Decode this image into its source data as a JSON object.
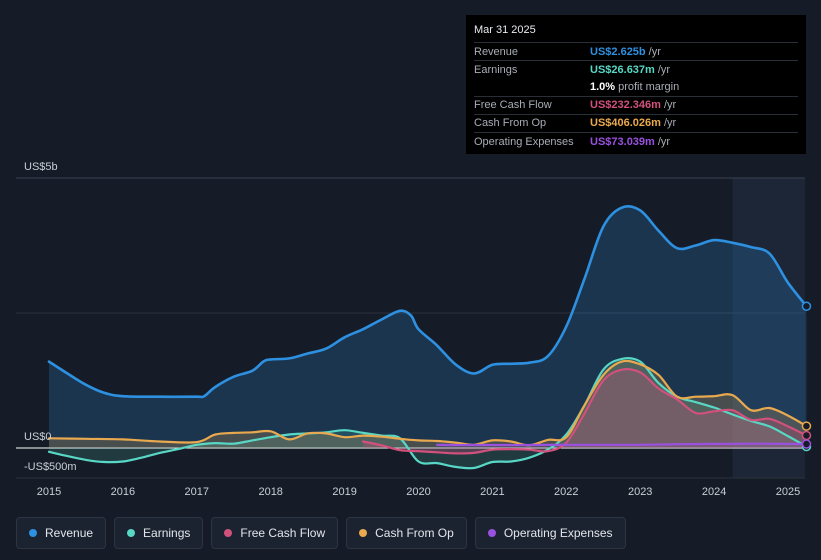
{
  "tooltip": {
    "date": "Mar 31 2025",
    "rows": [
      {
        "label": "Revenue",
        "value": "US$2.625b",
        "unit": "/yr",
        "color": "#2e90e0"
      },
      {
        "label": "Earnings",
        "value": "US$26.637m",
        "unit": "/yr",
        "color": "#58d7c5"
      },
      {
        "label": "",
        "value": "1.0%",
        "unit": "profit margin",
        "color": "#ffffff"
      },
      {
        "label": "Free Cash Flow",
        "value": "US$232.346m",
        "unit": "/yr",
        "color": "#d2517c"
      },
      {
        "label": "Cash From Op",
        "value": "US$406.026m",
        "unit": "/yr",
        "color": "#e9a94f"
      },
      {
        "label": "Operating Expenses",
        "value": "US$73.039m",
        "unit": "/yr",
        "color": "#9b51e0"
      }
    ]
  },
  "legend": [
    {
      "label": "Revenue",
      "color": "#2e90e0"
    },
    {
      "label": "Earnings",
      "color": "#58d7c5"
    },
    {
      "label": "Free Cash Flow",
      "color": "#d2517c"
    },
    {
      "label": "Cash From Op",
      "color": "#e9a94f"
    },
    {
      "label": "Operating Expenses",
      "color": "#9b51e0"
    }
  ],
  "chart_data": {
    "type": "area",
    "title": "",
    "xlabel": "",
    "ylabel": "",
    "ylim": [
      -500,
      5000
    ],
    "y_tick_labels": [
      "US$5b",
      "US$0",
      "-US$500m"
    ],
    "x_tick_labels": [
      "2015",
      "2016",
      "2017",
      "2018",
      "2019",
      "2020",
      "2021",
      "2022",
      "2023",
      "2024",
      "2025"
    ],
    "highlight_start": 2024.25,
    "series": [
      {
        "name": "Revenue",
        "color": "#2e90e0",
        "unit": "US$m",
        "points": [
          [
            2015.0,
            1600
          ],
          [
            2015.25,
            1380
          ],
          [
            2015.5,
            1170
          ],
          [
            2015.75,
            1020
          ],
          [
            2016.0,
            960
          ],
          [
            2016.5,
            950
          ],
          [
            2017.0,
            950
          ],
          [
            2017.1,
            960
          ],
          [
            2017.25,
            1130
          ],
          [
            2017.5,
            1320
          ],
          [
            2017.75,
            1430
          ],
          [
            2017.9,
            1600
          ],
          [
            2018.0,
            1640
          ],
          [
            2018.25,
            1660
          ],
          [
            2018.5,
            1750
          ],
          [
            2018.75,
            1840
          ],
          [
            2019.0,
            2050
          ],
          [
            2019.25,
            2200
          ],
          [
            2019.5,
            2380
          ],
          [
            2019.75,
            2540
          ],
          [
            2019.9,
            2450
          ],
          [
            2020.0,
            2200
          ],
          [
            2020.25,
            1900
          ],
          [
            2020.5,
            1550
          ],
          [
            2020.75,
            1380
          ],
          [
            2021.0,
            1540
          ],
          [
            2021.25,
            1560
          ],
          [
            2021.5,
            1580
          ],
          [
            2021.75,
            1700
          ],
          [
            2022.0,
            2250
          ],
          [
            2022.25,
            3150
          ],
          [
            2022.5,
            4100
          ],
          [
            2022.75,
            4450
          ],
          [
            2023.0,
            4400
          ],
          [
            2023.25,
            4020
          ],
          [
            2023.5,
            3700
          ],
          [
            2023.75,
            3750
          ],
          [
            2024.0,
            3850
          ],
          [
            2024.25,
            3800
          ],
          [
            2024.5,
            3720
          ],
          [
            2024.75,
            3600
          ],
          [
            2025.0,
            3060
          ],
          [
            2025.25,
            2625
          ]
        ]
      },
      {
        "name": "Earnings",
        "color": "#58d7c5",
        "unit": "US$m",
        "points": [
          [
            2015.0,
            -70
          ],
          [
            2015.25,
            -150
          ],
          [
            2015.5,
            -220
          ],
          [
            2015.75,
            -260
          ],
          [
            2016.0,
            -250
          ],
          [
            2016.25,
            -180
          ],
          [
            2016.5,
            -90
          ],
          [
            2016.75,
            -20
          ],
          [
            2017.0,
            60
          ],
          [
            2017.25,
            90
          ],
          [
            2017.5,
            80
          ],
          [
            2017.75,
            140
          ],
          [
            2018.0,
            200
          ],
          [
            2018.25,
            250
          ],
          [
            2018.5,
            270
          ],
          [
            2018.75,
            290
          ],
          [
            2019.0,
            330
          ],
          [
            2019.25,
            280
          ],
          [
            2019.5,
            230
          ],
          [
            2019.75,
            180
          ],
          [
            2020.0,
            -250
          ],
          [
            2020.25,
            -280
          ],
          [
            2020.5,
            -350
          ],
          [
            2020.75,
            -370
          ],
          [
            2021.0,
            -260
          ],
          [
            2021.25,
            -250
          ],
          [
            2021.5,
            -180
          ],
          [
            2021.75,
            -30
          ],
          [
            2022.0,
            250
          ],
          [
            2022.25,
            800
          ],
          [
            2022.5,
            1450
          ],
          [
            2022.75,
            1650
          ],
          [
            2023.0,
            1600
          ],
          [
            2023.25,
            1200
          ],
          [
            2023.5,
            950
          ],
          [
            2023.75,
            850
          ],
          [
            2024.0,
            750
          ],
          [
            2024.25,
            620
          ],
          [
            2024.5,
            500
          ],
          [
            2024.75,
            400
          ],
          [
            2025.0,
            220
          ],
          [
            2025.25,
            27
          ]
        ]
      },
      {
        "name": "Free Cash Flow",
        "color": "#d2517c",
        "unit": "US$m",
        "points": [
          [
            2019.25,
            120
          ],
          [
            2019.5,
            50
          ],
          [
            2019.75,
            -40
          ],
          [
            2020.0,
            -60
          ],
          [
            2020.25,
            -80
          ],
          [
            2020.5,
            -100
          ],
          [
            2020.75,
            -90
          ],
          [
            2021.0,
            -30
          ],
          [
            2021.25,
            -20
          ],
          [
            2021.5,
            -30
          ],
          [
            2021.75,
            -60
          ],
          [
            2022.0,
            100
          ],
          [
            2022.25,
            650
          ],
          [
            2022.5,
            1250
          ],
          [
            2022.75,
            1450
          ],
          [
            2023.0,
            1400
          ],
          [
            2023.25,
            1100
          ],
          [
            2023.5,
            900
          ],
          [
            2023.75,
            650
          ],
          [
            2024.0,
            680
          ],
          [
            2024.25,
            700
          ],
          [
            2024.5,
            520
          ],
          [
            2024.75,
            540
          ],
          [
            2025.0,
            400
          ],
          [
            2025.25,
            232
          ]
        ]
      },
      {
        "name": "Cash From Op",
        "color": "#e9a94f",
        "unit": "US$m",
        "points": [
          [
            2015.0,
            180
          ],
          [
            2015.5,
            170
          ],
          [
            2016.0,
            160
          ],
          [
            2016.5,
            120
          ],
          [
            2017.0,
            110
          ],
          [
            2017.25,
            250
          ],
          [
            2017.5,
            280
          ],
          [
            2017.75,
            290
          ],
          [
            2018.0,
            310
          ],
          [
            2018.25,
            160
          ],
          [
            2018.5,
            270
          ],
          [
            2018.75,
            270
          ],
          [
            2019.0,
            200
          ],
          [
            2019.25,
            230
          ],
          [
            2019.5,
            210
          ],
          [
            2019.75,
            170
          ],
          [
            2020.0,
            140
          ],
          [
            2020.25,
            130
          ],
          [
            2020.5,
            100
          ],
          [
            2020.75,
            60
          ],
          [
            2021.0,
            140
          ],
          [
            2021.25,
            120
          ],
          [
            2021.5,
            50
          ],
          [
            2021.75,
            150
          ],
          [
            2022.0,
            200
          ],
          [
            2022.25,
            800
          ],
          [
            2022.5,
            1350
          ],
          [
            2022.75,
            1600
          ],
          [
            2023.0,
            1550
          ],
          [
            2023.25,
            1350
          ],
          [
            2023.5,
            950
          ],
          [
            2023.75,
            950
          ],
          [
            2024.0,
            960
          ],
          [
            2024.25,
            980
          ],
          [
            2024.5,
            700
          ],
          [
            2024.75,
            740
          ],
          [
            2025.0,
            600
          ],
          [
            2025.25,
            406
          ]
        ]
      },
      {
        "name": "Operating Expenses",
        "color": "#9b51e0",
        "unit": "US$m",
        "points": [
          [
            2020.25,
            60
          ],
          [
            2020.5,
            55
          ],
          [
            2020.75,
            55
          ],
          [
            2021.0,
            55
          ],
          [
            2021.5,
            55
          ],
          [
            2022.0,
            60
          ],
          [
            2022.5,
            60
          ],
          [
            2023.0,
            60
          ],
          [
            2023.5,
            70
          ],
          [
            2024.0,
            75
          ],
          [
            2024.5,
            80
          ],
          [
            2025.0,
            78
          ],
          [
            2025.25,
            73
          ]
        ]
      }
    ]
  }
}
